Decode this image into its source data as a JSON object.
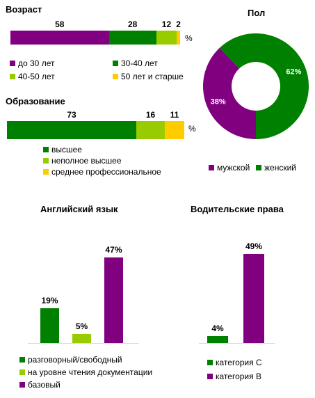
{
  "colors": {
    "purple": "#800080",
    "green": "#008000",
    "lime": "#99cc00",
    "yellow": "#ffcc00"
  },
  "percent_sign": "%",
  "chart_data": [
    {
      "id": "age",
      "type": "bar",
      "orientation": "horizontal-stacked",
      "title": "Возраст",
      "unit": "%",
      "series": [
        {
          "name": "до 30 лет",
          "value": 58,
          "color": "#800080"
        },
        {
          "name": "30-40  лет",
          "value": 28,
          "color": "#008000"
        },
        {
          "name": "40-50  лет",
          "value": 12,
          "color": "#99cc00"
        },
        {
          "name": "50 лет и старше",
          "value": 2,
          "color": "#ffcc00"
        }
      ]
    },
    {
      "id": "education",
      "type": "bar",
      "orientation": "horizontal-stacked",
      "title": "Образование",
      "unit": "%",
      "series": [
        {
          "name": "высшее",
          "value": 73,
          "color": "#008000"
        },
        {
          "name": "неполное высшее",
          "value": 16,
          "color": "#99cc00"
        },
        {
          "name": "среднее профессиональное",
          "value": 11,
          "color": "#ffcc00"
        }
      ]
    },
    {
      "id": "gender",
      "type": "pie",
      "title": "Пол",
      "slices": [
        {
          "name": "мужской",
          "value": 38,
          "label": "38%",
          "color": "#800080"
        },
        {
          "name": "женский",
          "value": 62,
          "label": "62%",
          "color": "#008000"
        }
      ]
    },
    {
      "id": "english",
      "type": "bar",
      "title": "Английский язык",
      "ylim": [
        0,
        50
      ],
      "series": [
        {
          "name": "разговорный/свободный",
          "value": 19,
          "label": "19%",
          "color": "#008000"
        },
        {
          "name": "на уровне чтения документации",
          "value": 5,
          "label": "5%",
          "color": "#99cc00"
        },
        {
          "name": "базовый",
          "value": 47,
          "label": "47%",
          "color": "#800080"
        }
      ]
    },
    {
      "id": "license",
      "type": "bar",
      "title": "Водительские права",
      "ylim": [
        0,
        50
      ],
      "series": [
        {
          "name": "категория С",
          "value": 4,
          "label": "4%",
          "color": "#008000"
        },
        {
          "name": "категория В",
          "value": 49,
          "label": "49%",
          "color": "#800080"
        }
      ]
    }
  ]
}
